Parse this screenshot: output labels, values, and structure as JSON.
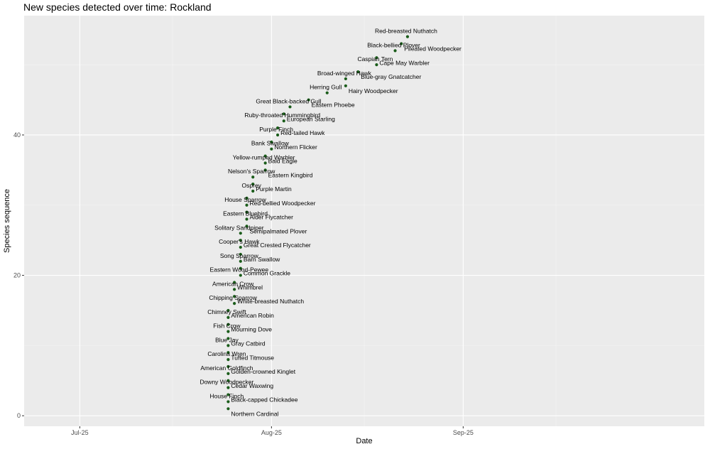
{
  "chart_data": {
    "type": "scatter",
    "title": "New species detected over time: Rockland",
    "xlabel": "Date",
    "ylabel": "Species sequence",
    "x_type": "date",
    "xlim": [
      "2025-06-22",
      "2025-10-10"
    ],
    "ylim": [
      -1.5,
      57
    ],
    "x_ticks": [
      {
        "value": "2025-07-01",
        "label": "Jul-25"
      },
      {
        "value": "2025-08-01",
        "label": "Aug-25"
      },
      {
        "value": "2025-09-01",
        "label": "Sep-25"
      }
    ],
    "x_minor_ticks": [
      "2025-07-16",
      "2025-08-16",
      "2025-09-16"
    ],
    "y_ticks": [
      0,
      20,
      40
    ],
    "y_minor_ticks": [
      10,
      30,
      50
    ],
    "grid": true,
    "background": "#ebebeb",
    "point_color": "#1a5c1a",
    "points": [
      {
        "date": "2025-07-25",
        "seq": 1,
        "name": "Northern Cardinal"
      },
      {
        "date": "2025-07-25",
        "seq": 2,
        "name": "House Finch"
      },
      {
        "date": "2025-07-25",
        "seq": 3,
        "name": "Black-capped Chickadee"
      },
      {
        "date": "2025-07-25",
        "seq": 4,
        "name": "Downy Woodpecker"
      },
      {
        "date": "2025-07-25",
        "seq": 5,
        "name": "Cedar Waxwing"
      },
      {
        "date": "2025-07-25",
        "seq": 6,
        "name": "American Goldfinch"
      },
      {
        "date": "2025-07-25",
        "seq": 7,
        "name": "Golden-crowned Kinglet"
      },
      {
        "date": "2025-07-25",
        "seq": 8,
        "name": "Carolina Wren"
      },
      {
        "date": "2025-07-25",
        "seq": 9,
        "name": "Tufted Titmouse"
      },
      {
        "date": "2025-07-25",
        "seq": 10,
        "name": "Blue Jay"
      },
      {
        "date": "2025-07-25",
        "seq": 11,
        "name": "Gray Catbird"
      },
      {
        "date": "2025-07-25",
        "seq": 12,
        "name": "Fish Crow"
      },
      {
        "date": "2025-07-25",
        "seq": 13,
        "name": "Mourning Dove"
      },
      {
        "date": "2025-07-25",
        "seq": 14,
        "name": "Chimney Swift"
      },
      {
        "date": "2025-07-25",
        "seq": 15,
        "name": "American Robin"
      },
      {
        "date": "2025-07-26",
        "seq": 16,
        "name": "Chipping Sparrow"
      },
      {
        "date": "2025-07-26",
        "seq": 17,
        "name": "White-breasted Nuthatch"
      },
      {
        "date": "2025-07-26",
        "seq": 18,
        "name": "American Crow"
      },
      {
        "date": "2025-07-26",
        "seq": 19,
        "name": "Whimbrel"
      },
      {
        "date": "2025-07-27",
        "seq": 20,
        "name": "Eastern Wood-Pewee"
      },
      {
        "date": "2025-07-27",
        "seq": 21,
        "name": "Common Grackle"
      },
      {
        "date": "2025-07-27",
        "seq": 22,
        "name": "Song Sparrow"
      },
      {
        "date": "2025-07-27",
        "seq": 23,
        "name": "Barn Swallow"
      },
      {
        "date": "2025-07-27",
        "seq": 24,
        "name": "Cooper's Hawk"
      },
      {
        "date": "2025-07-27",
        "seq": 25,
        "name": "Great Crested Flycatcher"
      },
      {
        "date": "2025-07-27",
        "seq": 26,
        "name": "Solitary Sandpiper"
      },
      {
        "date": "2025-07-28",
        "seq": 27,
        "name": "Semipalmated Plover"
      },
      {
        "date": "2025-07-28",
        "seq": 28,
        "name": "Eastern Bluebird"
      },
      {
        "date": "2025-07-28",
        "seq": 29,
        "name": "Alder Flycatcher"
      },
      {
        "date": "2025-07-28",
        "seq": 30,
        "name": "House Sparrow"
      },
      {
        "date": "2025-07-28",
        "seq": 31,
        "name": "Red-bellied Woodpecker"
      },
      {
        "date": "2025-07-29",
        "seq": 32,
        "name": "Osprey"
      },
      {
        "date": "2025-07-29",
        "seq": 33,
        "name": "Purple Martin"
      },
      {
        "date": "2025-07-29",
        "seq": 34,
        "name": "Nelson's Sparrow"
      },
      {
        "date": "2025-07-31",
        "seq": 35,
        "name": "Eastern Kingbird"
      },
      {
        "date": "2025-07-31",
        "seq": 36,
        "name": "Yellow-rumped Warbler"
      },
      {
        "date": "2025-07-31",
        "seq": 37,
        "name": "Bald Eagle"
      },
      {
        "date": "2025-08-01",
        "seq": 38,
        "name": "Bank Swallow"
      },
      {
        "date": "2025-08-01",
        "seq": 39,
        "name": "Northern Flicker"
      },
      {
        "date": "2025-08-02",
        "seq": 40,
        "name": "Purple Finch"
      },
      {
        "date": "2025-08-02",
        "seq": 41,
        "name": "Red-tailed Hawk"
      },
      {
        "date": "2025-08-03",
        "seq": 42,
        "name": "Ruby-throated Hummingbird"
      },
      {
        "date": "2025-08-03",
        "seq": 43,
        "name": "European Starling"
      },
      {
        "date": "2025-08-04",
        "seq": 44,
        "name": "Great Black-backed Gull"
      },
      {
        "date": "2025-08-07",
        "seq": 45,
        "name": "Eastern Phoebe"
      },
      {
        "date": "2025-08-10",
        "seq": 46,
        "name": "Herring Gull"
      },
      {
        "date": "2025-08-13",
        "seq": 47,
        "name": "Hairy Woodpecker"
      },
      {
        "date": "2025-08-13",
        "seq": 48,
        "name": "Broad-winged Hawk"
      },
      {
        "date": "2025-08-15",
        "seq": 49,
        "name": "Blue-gray Gnatcatcher"
      },
      {
        "date": "2025-08-18",
        "seq": 50,
        "name": "Caspian Tern"
      },
      {
        "date": "2025-08-18",
        "seq": 51,
        "name": "Cape May Warbler"
      },
      {
        "date": "2025-08-21",
        "seq": 52,
        "name": "Black-bellied Plover"
      },
      {
        "date": "2025-08-22",
        "seq": 53,
        "name": "Pileated Woodpecker"
      },
      {
        "date": "2025-08-23",
        "seq": 54,
        "name": "Red-breasted Nuthatch"
      }
    ]
  }
}
